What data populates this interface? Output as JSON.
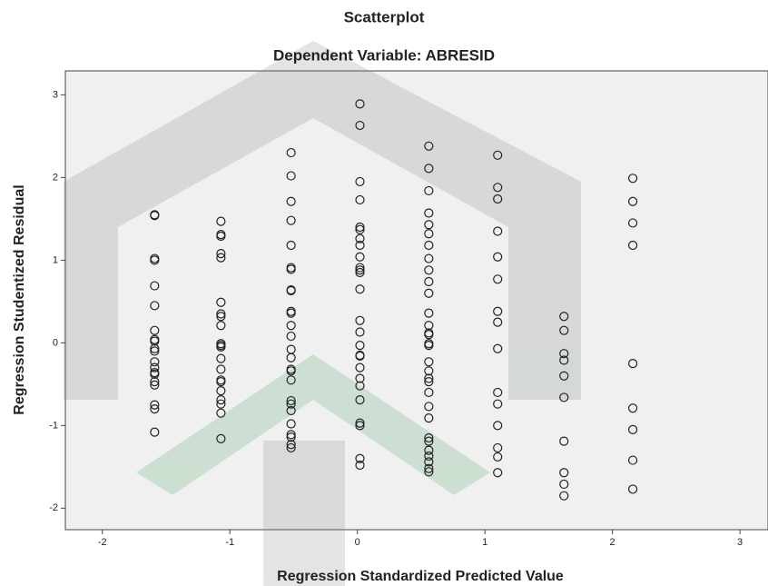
{
  "chart_data": {
    "type": "scatter",
    "title": "Scatterplot",
    "subtitle": "Dependent Variable: ABRESID",
    "x_label": "Regression Standardized Predicted Value",
    "y_label": "Regression Studentized Residual",
    "color": "#222222",
    "xlim": [
      -2.29,
      3.22
    ],
    "ylim": [
      -2.26,
      3.29
    ],
    "xticks": [
      -2,
      -1,
      0,
      1,
      2,
      3
    ],
    "yticks": [
      -2,
      -1,
      0,
      1,
      2,
      3
    ],
    "x": [
      -1.59,
      -1.59,
      -1.59,
      -1.59,
      -1.59,
      -1.59,
      -1.59,
      -1.59,
      -1.59,
      -1.59,
      -1.59,
      -1.59,
      -1.59,
      -1.59,
      -1.59,
      -1.59,
      -1.59,
      -1.59,
      -1.59,
      -1.59,
      -1.07,
      -1.07,
      -1.07,
      -1.07,
      -1.07,
      -1.07,
      -1.07,
      -1.07,
      -1.07,
      -1.07,
      -1.07,
      -1.07,
      -1.07,
      -1.07,
      -1.07,
      -1.07,
      -1.07,
      -1.07,
      -1.07,
      -1.07,
      -1.07,
      -0.52,
      -0.52,
      -0.52,
      -0.52,
      -0.52,
      -0.52,
      -0.52,
      -0.52,
      -0.52,
      -0.52,
      -0.52,
      -0.52,
      -0.52,
      -0.52,
      -0.52,
      -0.52,
      -0.52,
      -0.52,
      -0.52,
      -0.52,
      -0.52,
      -0.52,
      -0.52,
      -0.52,
      -0.52,
      -0.52,
      0.02,
      0.02,
      0.02,
      0.02,
      0.02,
      0.02,
      0.02,
      0.02,
      0.02,
      0.02,
      0.02,
      0.02,
      0.02,
      0.02,
      0.02,
      0.02,
      0.02,
      0.02,
      0.02,
      0.02,
      0.02,
      0.02,
      0.02,
      0.02,
      0.02,
      0.02,
      0.56,
      0.56,
      0.56,
      0.56,
      0.56,
      0.56,
      0.56,
      0.56,
      0.56,
      0.56,
      0.56,
      0.56,
      0.56,
      0.56,
      0.56,
      0.56,
      0.56,
      0.56,
      0.56,
      0.56,
      0.56,
      0.56,
      0.56,
      0.56,
      0.56,
      0.56,
      0.56,
      0.56,
      0.56,
      0.56,
      0.56,
      1.1,
      1.1,
      1.1,
      1.1,
      1.1,
      1.1,
      1.1,
      1.1,
      1.1,
      1.1,
      1.1,
      1.1,
      1.1,
      1.1,
      1.1,
      1.62,
      1.62,
      1.62,
      1.62,
      1.62,
      1.62,
      1.62,
      1.62,
      1.62,
      1.62,
      2.16,
      2.16,
      2.16,
      2.16,
      2.16,
      2.16,
      2.16,
      2.16,
      2.16
    ],
    "values": [
      1.55,
      1.54,
      1.02,
      1.0,
      0.69,
      0.45,
      0.15,
      0.04,
      0.02,
      -0.07,
      -0.1,
      -0.23,
      -0.3,
      -0.36,
      -0.38,
      -0.47,
      -0.51,
      -0.75,
      -0.8,
      -1.08,
      1.47,
      1.31,
      1.29,
      1.08,
      1.03,
      0.49,
      0.35,
      0.32,
      0.21,
      -0.01,
      -0.03,
      -0.05,
      -0.19,
      -0.32,
      -0.45,
      -0.47,
      -0.58,
      -0.69,
      -0.74,
      -0.85,
      -1.16,
      2.3,
      2.02,
      1.71,
      1.48,
      1.18,
      0.91,
      0.89,
      0.64,
      0.63,
      0.38,
      0.36,
      0.21,
      0.08,
      -0.08,
      -0.18,
      -0.32,
      -0.34,
      -0.45,
      -0.7,
      -0.74,
      -0.82,
      -0.98,
      -1.11,
      -1.14,
      -1.23,
      -1.27,
      2.89,
      2.63,
      1.95,
      1.73,
      1.4,
      1.37,
      1.26,
      1.18,
      1.04,
      0.91,
      0.88,
      0.85,
      0.65,
      0.27,
      0.13,
      -0.03,
      -0.15,
      -0.16,
      -0.3,
      -0.43,
      -0.52,
      -0.69,
      -0.97,
      -1.0,
      -1.4,
      -1.48,
      2.38,
      2.11,
      1.84,
      1.57,
      1.43,
      1.32,
      1.18,
      1.02,
      0.88,
      0.74,
      0.6,
      0.36,
      0.21,
      0.12,
      0.1,
      -0.01,
      -0.03,
      -0.23,
      -0.34,
      -0.43,
      -0.47,
      -0.6,
      -0.77,
      -0.91,
      -1.15,
      -1.19,
      -1.3,
      -1.37,
      -1.44,
      -1.52,
      -1.56,
      2.27,
      1.88,
      1.74,
      1.35,
      1.04,
      0.77,
      0.38,
      0.25,
      -0.07,
      -0.6,
      -0.74,
      -1.0,
      -1.27,
      -1.38,
      -1.57,
      0.32,
      0.15,
      -0.13,
      -0.21,
      -0.4,
      -0.66,
      -1.19,
      -1.57,
      -1.71,
      -1.85,
      1.99,
      1.71,
      1.45,
      1.18,
      -0.25,
      -0.79,
      -1.05,
      -1.42,
      -1.77
    ]
  }
}
